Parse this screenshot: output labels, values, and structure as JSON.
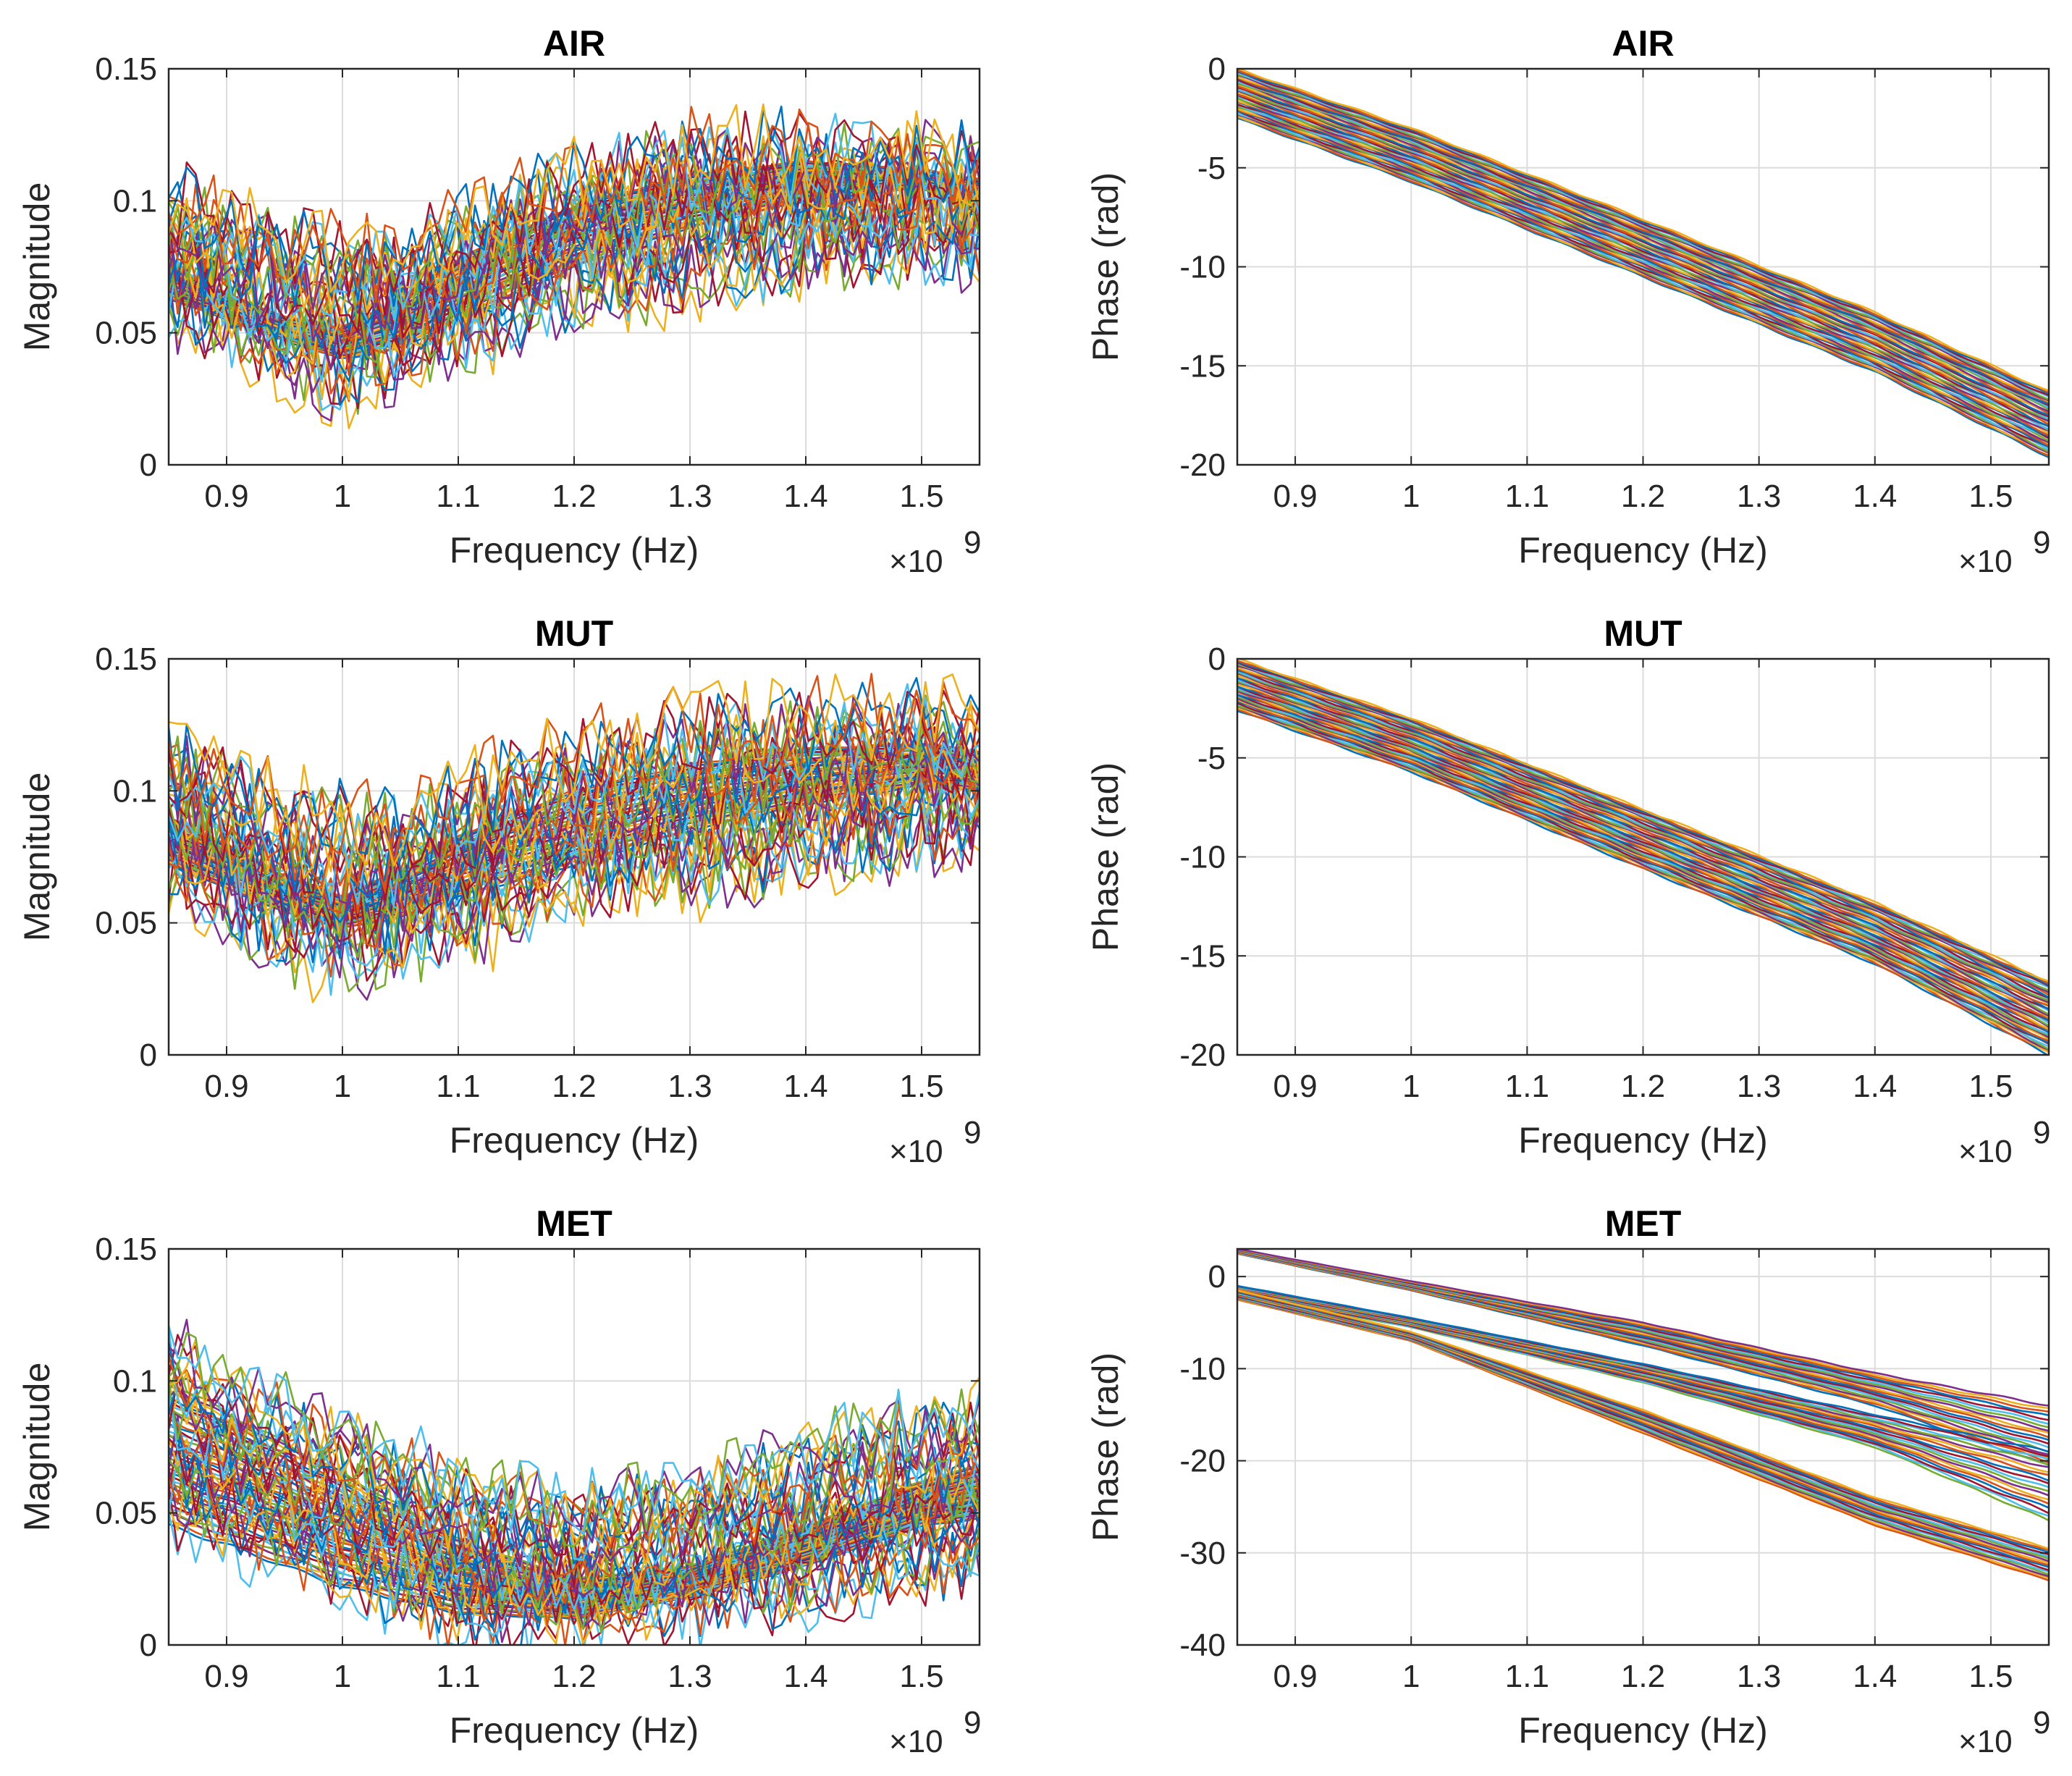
{
  "colors": {
    "series_palette": [
      "#0072BD",
      "#D95319",
      "#EDB120",
      "#7E2F8E",
      "#77AC30",
      "#4DBEEE",
      "#A2142F"
    ],
    "axis": "#262626",
    "grid": "#dcdcdc"
  },
  "chart_data": [
    {
      "id": "air-magnitude",
      "type": "line",
      "title": "AIR",
      "xlabel": "Frequency (Hz)",
      "ylabel": "Magnitude",
      "x_exponent_label": "×10",
      "x_exponent_power": "9",
      "xlim": [
        0.85,
        1.55
      ],
      "ylim": [
        0,
        0.15
      ],
      "xticks": [
        0.9,
        1.0,
        1.1,
        1.2,
        1.3,
        1.4,
        1.5
      ],
      "xtick_labels": [
        "0.9",
        "1",
        "1.1",
        "1.2",
        "1.3",
        "1.4",
        "1.5"
      ],
      "yticks": [
        0,
        0.05,
        0.1,
        0.15
      ],
      "ytick_labels": [
        "0",
        "0.05",
        "0.1",
        "0.15"
      ],
      "grid": true,
      "bands": [
        {
          "name": "smooth-traces",
          "count": 30,
          "style": "smooth",
          "x": [
            0.85,
            0.9,
            0.95,
            1.0,
            1.05,
            1.1,
            1.2,
            1.3,
            1.4,
            1.5,
            1.55
          ],
          "low": [
            0.063,
            0.055,
            0.047,
            0.04,
            0.044,
            0.055,
            0.075,
            0.09,
            0.1,
            0.105,
            0.095
          ],
          "high": [
            0.075,
            0.065,
            0.056,
            0.052,
            0.063,
            0.078,
            0.098,
            0.11,
            0.115,
            0.112,
            0.108
          ]
        },
        {
          "name": "noisy-traces",
          "count": 36,
          "style": "noisy",
          "amp": 0.018,
          "x": [
            0.85,
            0.9,
            0.95,
            1.0,
            1.05,
            1.1,
            1.2,
            1.3,
            1.4,
            1.5,
            1.55
          ],
          "low": [
            0.058,
            0.05,
            0.035,
            0.03,
            0.04,
            0.048,
            0.062,
            0.07,
            0.078,
            0.082,
            0.08
          ],
          "high": [
            0.105,
            0.092,
            0.086,
            0.082,
            0.08,
            0.093,
            0.11,
            0.12,
            0.122,
            0.12,
            0.115
          ]
        }
      ]
    },
    {
      "id": "air-phase",
      "type": "line",
      "title": "AIR",
      "xlabel": "Frequency (Hz)",
      "ylabel": "Phase (rad)",
      "x_exponent_label": "×10",
      "x_exponent_power": "9",
      "xlim": [
        0.85,
        1.55
      ],
      "ylim": [
        -20,
        0
      ],
      "xticks": [
        0.9,
        1.0,
        1.1,
        1.2,
        1.3,
        1.4,
        1.5
      ],
      "xtick_labels": [
        "0.9",
        "1",
        "1.1",
        "1.2",
        "1.3",
        "1.4",
        "1.5"
      ],
      "yticks": [
        -20,
        -15,
        -10,
        -5,
        0
      ],
      "ytick_labels": [
        "-20",
        "-15",
        "-10",
        "-5",
        "0"
      ],
      "grid": true,
      "bands": [
        {
          "name": "phase-traces",
          "count": 45,
          "style": "smooth",
          "x": [
            0.85,
            1.0,
            1.2,
            1.4,
            1.55
          ],
          "low": [
            -2.5,
            -5.7,
            -10.5,
            -15.3,
            -19.6
          ],
          "high": [
            0.0,
            -3.0,
            -7.6,
            -12.3,
            -16.3
          ]
        }
      ]
    },
    {
      "id": "mut-magnitude",
      "type": "line",
      "title": "MUT",
      "xlabel": "Frequency (Hz)",
      "ylabel": "Magnitude",
      "x_exponent_label": "×10",
      "x_exponent_power": "9",
      "xlim": [
        0.85,
        1.55
      ],
      "ylim": [
        0,
        0.15
      ],
      "xticks": [
        0.9,
        1.0,
        1.1,
        1.2,
        1.3,
        1.4,
        1.5
      ],
      "xtick_labels": [
        "0.9",
        "1",
        "1.1",
        "1.2",
        "1.3",
        "1.4",
        "1.5"
      ],
      "yticks": [
        0,
        0.05,
        0.1,
        0.15
      ],
      "ytick_labels": [
        "0",
        "0.05",
        "0.1",
        "0.15"
      ],
      "grid": true,
      "bands": [
        {
          "name": "smooth-traces",
          "count": 30,
          "style": "smooth",
          "x": [
            0.85,
            0.9,
            0.95,
            1.0,
            1.05,
            1.1,
            1.2,
            1.3,
            1.4,
            1.5,
            1.55
          ],
          "low": [
            0.072,
            0.063,
            0.054,
            0.048,
            0.052,
            0.06,
            0.072,
            0.085,
            0.095,
            0.102,
            0.1
          ],
          "high": [
            0.09,
            0.08,
            0.068,
            0.06,
            0.07,
            0.083,
            0.1,
            0.11,
            0.116,
            0.118,
            0.115
          ]
        },
        {
          "name": "noisy-traces",
          "count": 36,
          "style": "noisy",
          "amp": 0.018,
          "x": [
            0.85,
            0.9,
            0.95,
            1.0,
            1.05,
            1.1,
            1.2,
            1.3,
            1.4,
            1.5,
            1.55
          ],
          "low": [
            0.068,
            0.055,
            0.04,
            0.033,
            0.04,
            0.045,
            0.06,
            0.066,
            0.074,
            0.082,
            0.085
          ],
          "high": [
            0.115,
            0.105,
            0.095,
            0.09,
            0.088,
            0.1,
            0.115,
            0.125,
            0.128,
            0.13,
            0.125
          ]
        }
      ]
    },
    {
      "id": "mut-phase",
      "type": "line",
      "title": "MUT",
      "xlabel": "Frequency (Hz)",
      "ylabel": "Phase (rad)",
      "x_exponent_label": "×10",
      "x_exponent_power": "9",
      "xlim": [
        0.85,
        1.55
      ],
      "ylim": [
        -20,
        0
      ],
      "xticks": [
        0.9,
        1.0,
        1.1,
        1.2,
        1.3,
        1.4,
        1.5
      ],
      "xtick_labels": [
        "0.9",
        "1",
        "1.1",
        "1.2",
        "1.3",
        "1.4",
        "1.5"
      ],
      "yticks": [
        -20,
        -15,
        -10,
        -5,
        0
      ],
      "ytick_labels": [
        "-20",
        "-15",
        "-10",
        "-5",
        "0"
      ],
      "grid": true,
      "bands": [
        {
          "name": "phase-traces",
          "count": 45,
          "style": "smooth",
          "x": [
            0.85,
            1.0,
            1.2,
            1.4,
            1.55
          ],
          "low": [
            -2.6,
            -5.7,
            -10.6,
            -15.4,
            -20.0
          ],
          "high": [
            0.0,
            -3.0,
            -7.6,
            -12.3,
            -16.3
          ]
        }
      ]
    },
    {
      "id": "met-magnitude",
      "type": "line",
      "title": "MET",
      "xlabel": "Frequency (Hz)",
      "ylabel": "Magnitude",
      "x_exponent_label": "×10",
      "x_exponent_power": "9",
      "xlim": [
        0.85,
        1.55
      ],
      "ylim": [
        0,
        0.15
      ],
      "xticks": [
        0.9,
        1.0,
        1.1,
        1.2,
        1.3,
        1.4,
        1.5
      ],
      "xtick_labels": [
        "0.9",
        "1",
        "1.1",
        "1.2",
        "1.3",
        "1.4",
        "1.5"
      ],
      "yticks": [
        0,
        0.05,
        0.1,
        0.15
      ],
      "ytick_labels": [
        "0",
        "0.05",
        "0.1",
        "0.15"
      ],
      "grid": true,
      "bands": [
        {
          "name": "smooth-traces",
          "count": 40,
          "style": "smooth",
          "x": [
            0.85,
            0.9,
            1.0,
            1.1,
            1.2,
            1.3,
            1.4,
            1.5,
            1.55
          ],
          "low": [
            0.045,
            0.038,
            0.022,
            0.012,
            0.01,
            0.018,
            0.03,
            0.045,
            0.048
          ],
          "high": [
            0.1,
            0.088,
            0.065,
            0.04,
            0.025,
            0.03,
            0.045,
            0.062,
            0.068
          ]
        },
        {
          "name": "noisy-traces",
          "count": 36,
          "style": "noisy",
          "amp": 0.015,
          "x": [
            0.85,
            0.9,
            1.0,
            1.1,
            1.2,
            1.3,
            1.4,
            1.5,
            1.55
          ],
          "low": [
            0.05,
            0.04,
            0.025,
            0.008,
            0.01,
            0.012,
            0.018,
            0.025,
            0.03
          ],
          "high": [
            0.118,
            0.1,
            0.082,
            0.062,
            0.052,
            0.06,
            0.075,
            0.085,
            0.092
          ]
        }
      ]
    },
    {
      "id": "met-phase",
      "type": "line",
      "title": "MET",
      "xlabel": "Frequency (Hz)",
      "ylabel": "Phase (rad)",
      "x_exponent_label": "×10",
      "x_exponent_power": "9",
      "xlim": [
        0.85,
        1.55
      ],
      "ylim": [
        -40,
        3
      ],
      "xticks": [
        0.9,
        1.0,
        1.1,
        1.2,
        1.3,
        1.4,
        1.5
      ],
      "xtick_labels": [
        "0.9",
        "1",
        "1.1",
        "1.2",
        "1.3",
        "1.4",
        "1.5"
      ],
      "yticks": [
        -40,
        -30,
        -20,
        -10,
        0
      ],
      "ytick_labels": [
        "-40",
        "-30",
        "-20",
        "-10",
        "0"
      ],
      "grid": true,
      "bands": [
        {
          "name": "upper-group",
          "count": 18,
          "style": "smooth",
          "x": [
            0.85,
            1.0,
            1.2,
            1.4,
            1.55
          ],
          "low": [
            2.5,
            -1.5,
            -7.5,
            -14.0,
            -20.5
          ],
          "high": [
            3.0,
            -0.5,
            -5.0,
            -10.5,
            -14.0
          ]
        },
        {
          "name": "middle-group",
          "count": 18,
          "style": "smooth",
          "x": [
            0.85,
            1.0,
            1.2,
            1.4,
            1.55
          ],
          "low": [
            -2.0,
            -5.5,
            -11.5,
            -18.5,
            -26.5
          ],
          "high": [
            -1.0,
            -4.5,
            -9.5,
            -15.0,
            -19.0
          ]
        },
        {
          "name": "lower-group",
          "count": 16,
          "style": "smooth",
          "x": [
            0.85,
            1.0,
            1.2,
            1.4,
            1.55
          ],
          "low": [
            -2.5,
            -7.0,
            -17.0,
            -27.0,
            -33.0
          ],
          "high": [
            -1.5,
            -6.0,
            -14.5,
            -24.0,
            -29.5
          ]
        }
      ]
    }
  ]
}
